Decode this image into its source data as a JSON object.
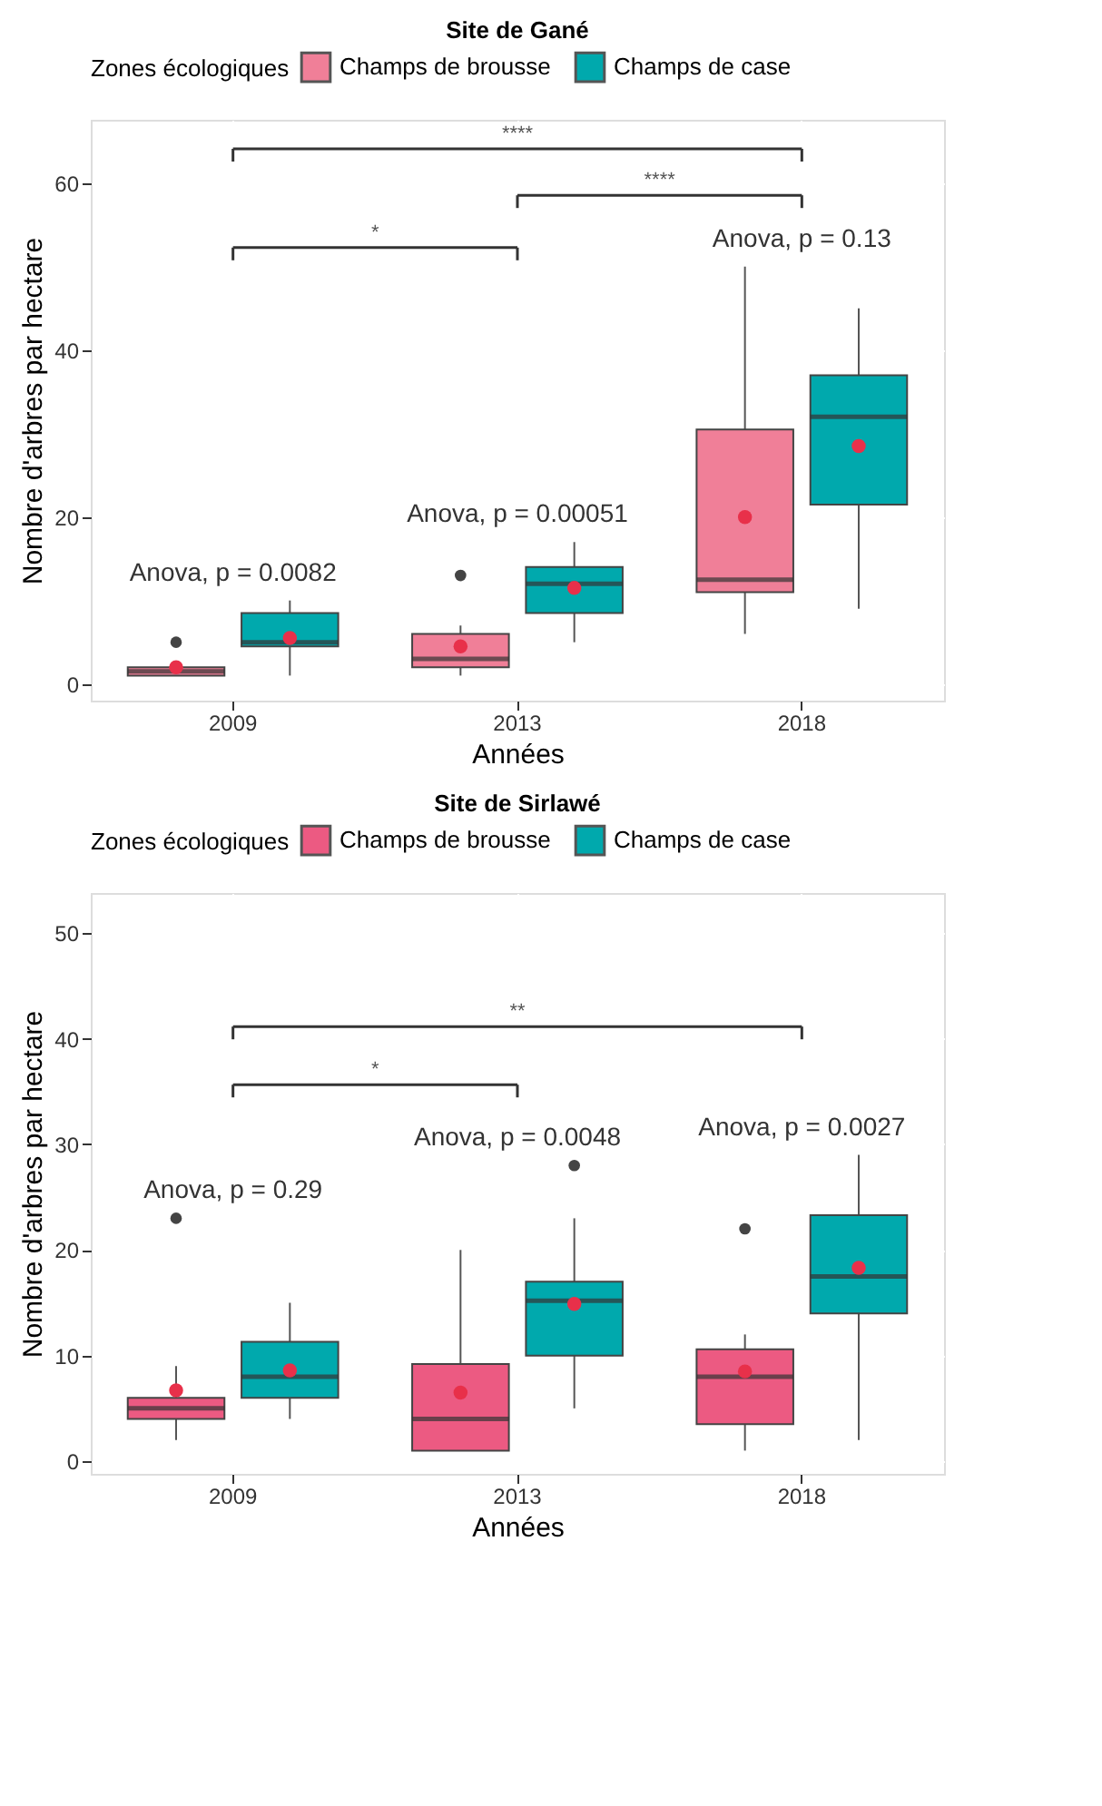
{
  "chart_data": [
    {
      "type": "box",
      "title": "Site de Gané",
      "xlabel": "Années",
      "ylabel": "Nombre d'arbres par hectare",
      "legend_title": "Zones écologiques",
      "legend": "top",
      "grid": true,
      "categories": [
        "2009",
        "2013",
        "2018"
      ],
      "ylim": [
        -2,
        67.6
      ],
      "yticks": [
        0,
        20,
        40,
        60
      ],
      "series": [
        {
          "name": "Champs de brousse",
          "color": "#f07f98",
          "boxes": [
            {
              "low": 1,
              "q1": 1,
              "median": 1.5,
              "q3": 2,
              "high": 2,
              "mean": 2,
              "outliers": [
                5
              ]
            },
            {
              "low": 1,
              "q1": 2,
              "median": 3,
              "q3": 6,
              "high": 7,
              "mean": 4.5,
              "outliers": [
                13
              ]
            },
            {
              "low": 6,
              "q1": 11,
              "median": 12.5,
              "q3": 30.5,
              "high": 50,
              "mean": 20
            }
          ]
        },
        {
          "name": "Champs de case",
          "color": "#00a9ad",
          "boxes": [
            {
              "low": 1,
              "q1": 4.5,
              "median": 5,
              "q3": 8.5,
              "high": 10,
              "mean": 5.5
            },
            {
              "low": 5,
              "q1": 8.5,
              "median": 12,
              "q3": 14,
              "high": 17,
              "mean": 11.5
            },
            {
              "low": 9,
              "q1": 21.5,
              "median": 32,
              "q3": 37,
              "high": 45,
              "mean": 28.5
            }
          ]
        }
      ],
      "annotations": [
        "Anova, p = 0.0082",
        "Anova, p = 0.00051",
        "Anova, p = 0.13",
        "****",
        "****",
        "*"
      ]
    },
    {
      "type": "box",
      "title": "Site de Sirlawé",
      "xlabel": "Années",
      "ylabel": "Nombre d'arbres par hectare",
      "legend_title": "Zones écologiques",
      "legend": "top",
      "grid": true,
      "categories": [
        "2009",
        "2013",
        "2018"
      ],
      "ylim": [
        -1.2,
        53.8
      ],
      "yticks": [
        0,
        10,
        20,
        30,
        40,
        50
      ],
      "series": [
        {
          "name": "Champs de brousse",
          "color": "#ec5a82",
          "boxes": [
            {
              "low": 2,
              "q1": 4,
              "median": 5,
              "q3": 6,
              "high": 9,
              "mean": 6.7,
              "outliers": [
                23
              ]
            },
            {
              "low": 1,
              "q1": 1,
              "median": 4,
              "q3": 9.2,
              "high": 20,
              "mean": 6.5
            },
            {
              "low": 1,
              "q1": 3.5,
              "median": 8,
              "q3": 10.6,
              "high": 12,
              "mean": 8.5,
              "outliers": [
                22
              ]
            }
          ]
        },
        {
          "name": "Champs de case",
          "color": "#00a9ad",
          "boxes": [
            {
              "low": 4,
              "q1": 6,
              "median": 8,
              "q3": 11.3,
              "high": 15,
              "mean": 8.6
            },
            {
              "low": 5,
              "q1": 10,
              "median": 15.2,
              "q3": 17,
              "high": 23,
              "mean": 14.9,
              "outliers": [
                28
              ]
            },
            {
              "low": 2,
              "q1": 14,
              "median": 17.5,
              "q3": 23.3,
              "high": 29,
              "mean": 18.3
            }
          ]
        }
      ],
      "annotations": [
        "Anova, p = 0.29",
        "Anova, p = 0.0048",
        "Anova, p = 0.0027",
        "**",
        "*"
      ]
    }
  ]
}
